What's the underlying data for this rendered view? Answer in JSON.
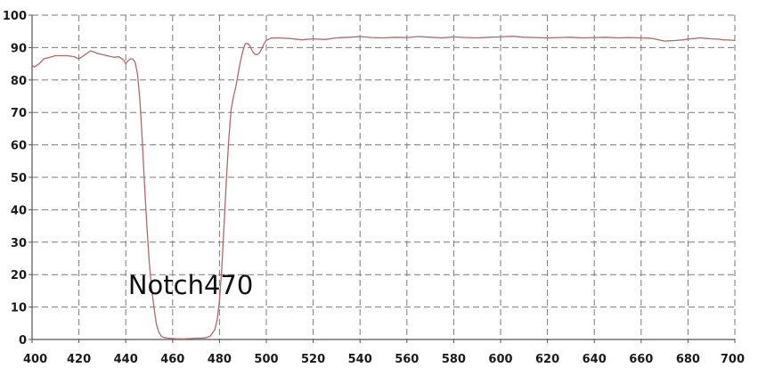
{
  "chart_data": {
    "type": "line",
    "title": "",
    "xlabel": "",
    "ylabel": "",
    "xlim": [
      400,
      700
    ],
    "ylim": [
      0,
      100
    ],
    "x_ticks": [
      400,
      420,
      440,
      460,
      480,
      500,
      520,
      540,
      560,
      580,
      600,
      620,
      640,
      660,
      680,
      700
    ],
    "y_ticks": [
      0,
      10,
      20,
      30,
      40,
      50,
      60,
      70,
      80,
      90,
      100
    ],
    "grid": true,
    "legend": "none",
    "annotation": {
      "text": "Notch470",
      "x": 441,
      "y": 14
    },
    "line_color": "#b06a6a",
    "series": [
      {
        "x": [
          400,
          401,
          403,
          405,
          410,
          415,
          418,
          420,
          423,
          425,
          428,
          432,
          435,
          437,
          439,
          440,
          441,
          442,
          443,
          444,
          445,
          446,
          447,
          448,
          449,
          450,
          451,
          452,
          453,
          454,
          455,
          456,
          458,
          460,
          462,
          465,
          468,
          470,
          472,
          474,
          476,
          478,
          479,
          480,
          481,
          482,
          483,
          484,
          485,
          486,
          487,
          488,
          489,
          490,
          491,
          492,
          493,
          494,
          495,
          496,
          497,
          498,
          499,
          500,
          502,
          505,
          510,
          515,
          520,
          525,
          530,
          535,
          540,
          545,
          550,
          555,
          560,
          565,
          570,
          575,
          580,
          585,
          590,
          595,
          600,
          605,
          610,
          615,
          620,
          625,
          630,
          635,
          640,
          645,
          650,
          655,
          660,
          663,
          665,
          668,
          670,
          672,
          675,
          678,
          680,
          683,
          685,
          688,
          690,
          693,
          695,
          698,
          700
        ],
        "y": [
          84.5,
          84,
          85,
          86.5,
          87.5,
          87.5,
          87.2,
          86.5,
          88,
          89,
          88.2,
          87.5,
          87,
          87.2,
          86.2,
          85,
          86,
          86.5,
          86.5,
          85.5,
          82,
          74,
          62,
          48,
          35,
          24,
          16,
          10,
          5,
          2.5,
          1.2,
          0.7,
          0.4,
          0.3,
          0.2,
          0.2,
          0.3,
          0.4,
          0.4,
          0.5,
          1,
          3,
          6,
          12,
          22,
          36,
          50,
          62,
          71,
          75,
          78,
          82,
          86,
          89,
          91.2,
          91.3,
          90.5,
          89,
          88,
          87.8,
          88.3,
          89.5,
          91.2,
          92.2,
          92.9,
          93,
          92.8,
          92.4,
          92.7,
          92.5,
          93,
          93.2,
          93.4,
          93.1,
          93,
          93.2,
          93.1,
          93.4,
          93.2,
          93,
          93.3,
          93.1,
          93,
          93.2,
          93.3,
          93.5,
          93.2,
          93.1,
          93,
          93.1,
          93.2,
          93,
          93.1,
          93.2,
          93,
          93.1,
          93,
          92.9,
          92.8,
          92.3,
          92,
          92.1,
          92.2,
          92.4,
          92.6,
          92.8,
          93,
          92.8,
          92.7,
          92.6,
          92.4,
          92.3,
          92.2
        ]
      }
    ]
  }
}
